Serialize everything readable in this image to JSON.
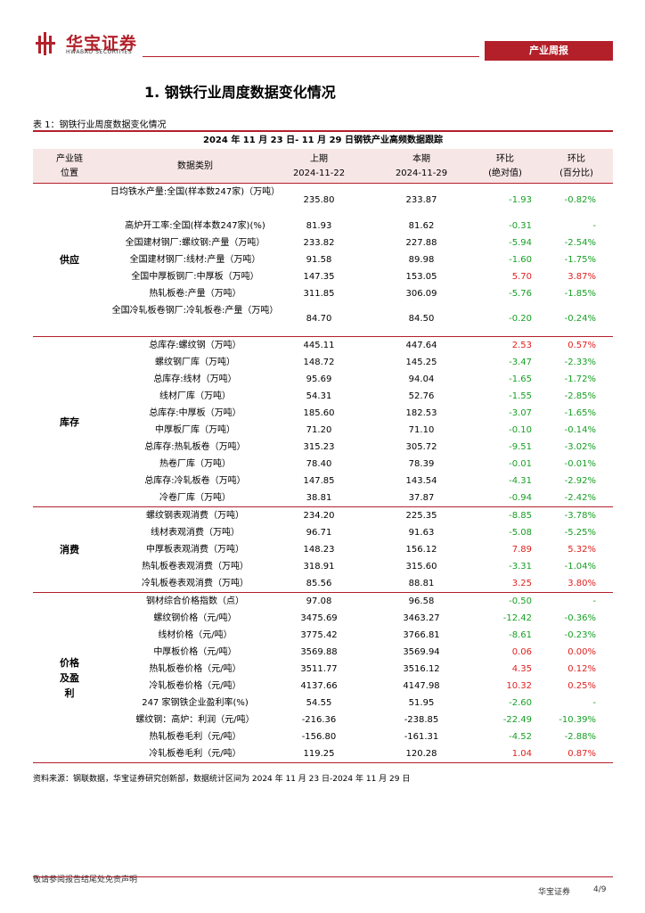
{
  "header": {
    "brand_cn": "华宝证券",
    "brand_en": "HWABAO SECURITIES",
    "report_type": "产业周报",
    "brand_color": "#b3202a"
  },
  "section_title": "1. 钢铁行业周度数据变化情况",
  "table_caption": "表 1：钢铁行业周度数据变化情况",
  "table": {
    "title": "2024 年 11 月 23 日- 11 月 29 日钢铁产业高频数据跟踪",
    "columns": {
      "chain_1": "产业链",
      "chain_2": "位置",
      "category": "数据类别",
      "prev_1": "上期",
      "prev_2": "2024-11-22",
      "curr_1": "本期",
      "curr_2": "2024-11-29",
      "abs_1": "环比",
      "abs_2": "(绝对值)",
      "pct_1": "环比",
      "pct_2": "(百分比)"
    },
    "colors": {
      "up": "#e0201e",
      "down": "#16a024",
      "neutral": "#000000"
    },
    "groups": [
      {
        "label": "供应",
        "rows": [
          {
            "name": "日均铁水产量:全国(样本数247家)（万吨）",
            "prev": "235.80",
            "curr": "233.87",
            "abs": "-1.93",
            "pct": "-0.82%",
            "dir": "down",
            "tall": true
          },
          {
            "name": "高炉开工率:全国(样本数247家)(%)",
            "prev": "81.93",
            "curr": "81.62",
            "abs": "-0.31",
            "pct": "-",
            "dir": "down"
          },
          {
            "name": "全国建材钢厂:螺纹钢:产量（万吨）",
            "prev": "233.82",
            "curr": "227.88",
            "abs": "-5.94",
            "pct": "-2.54%",
            "dir": "down"
          },
          {
            "name": "全国建材钢厂:线材:产量（万吨）",
            "prev": "91.58",
            "curr": "89.98",
            "abs": "-1.60",
            "pct": "-1.75%",
            "dir": "down"
          },
          {
            "name": "全国中厚板钢厂:中厚板（万吨）",
            "prev": "147.35",
            "curr": "153.05",
            "abs": "5.70",
            "pct": "3.87%",
            "dir": "up"
          },
          {
            "name": "热轧板卷:产量（万吨）",
            "prev": "311.85",
            "curr": "306.09",
            "abs": "-5.76",
            "pct": "-1.85%",
            "dir": "down"
          },
          {
            "name": "全国冷轧板卷钢厂:冷轧板卷:产量（万吨）",
            "prev": "84.70",
            "curr": "84.50",
            "abs": "-0.20",
            "pct": "-0.24%",
            "dir": "down",
            "tall": true
          }
        ]
      },
      {
        "label": "库存",
        "rows": [
          {
            "name": "总库存:螺纹钢（万吨）",
            "prev": "445.11",
            "curr": "447.64",
            "abs": "2.53",
            "pct": "0.57%",
            "dir": "up"
          },
          {
            "name": "螺纹钢厂库（万吨）",
            "prev": "148.72",
            "curr": "145.25",
            "abs": "-3.47",
            "pct": "-2.33%",
            "dir": "down"
          },
          {
            "name": "总库存:线材（万吨）",
            "prev": "95.69",
            "curr": "94.04",
            "abs": "-1.65",
            "pct": "-1.72%",
            "dir": "down"
          },
          {
            "name": "线材厂库（万吨）",
            "prev": "54.31",
            "curr": "52.76",
            "abs": "-1.55",
            "pct": "-2.85%",
            "dir": "down"
          },
          {
            "name": "总库存:中厚板（万吨）",
            "prev": "185.60",
            "curr": "182.53",
            "abs": "-3.07",
            "pct": "-1.65%",
            "dir": "down"
          },
          {
            "name": "中厚板厂库（万吨）",
            "prev": "71.20",
            "curr": "71.10",
            "abs": "-0.10",
            "pct": "-0.14%",
            "dir": "down"
          },
          {
            "name": "总库存:热轧板卷（万吨）",
            "prev": "315.23",
            "curr": "305.72",
            "abs": "-9.51",
            "pct": "-3.02%",
            "dir": "down"
          },
          {
            "name": "热卷厂库（万吨）",
            "prev": "78.40",
            "curr": "78.39",
            "abs": "-0.01",
            "pct": "-0.01%",
            "dir": "down"
          },
          {
            "name": "总库存:冷轧板卷（万吨）",
            "prev": "147.85",
            "curr": "143.54",
            "abs": "-4.31",
            "pct": "-2.92%",
            "dir": "down"
          },
          {
            "name": "冷卷厂库（万吨）",
            "prev": "38.81",
            "curr": "37.87",
            "abs": "-0.94",
            "pct": "-2.42%",
            "dir": "down"
          }
        ]
      },
      {
        "label": "消费",
        "rows": [
          {
            "name": "螺纹钢表观消费（万吨）",
            "prev": "234.20",
            "curr": "225.35",
            "abs": "-8.85",
            "pct": "-3.78%",
            "dir": "down"
          },
          {
            "name": "线材表观消费（万吨）",
            "prev": "96.71",
            "curr": "91.63",
            "abs": "-5.08",
            "pct": "-5.25%",
            "dir": "down"
          },
          {
            "name": "中厚板表观消费（万吨）",
            "prev": "148.23",
            "curr": "156.12",
            "abs": "7.89",
            "pct": "5.32%",
            "dir": "up"
          },
          {
            "name": "热轧板卷表观消费（万吨）",
            "prev": "318.91",
            "curr": "315.60",
            "abs": "-3.31",
            "pct": "-1.04%",
            "dir": "down"
          },
          {
            "name": "冷轧板卷表观消费（万吨）",
            "prev": "85.56",
            "curr": "88.81",
            "abs": "3.25",
            "pct": "3.80%",
            "dir": "up"
          }
        ]
      },
      {
        "label": "价格及盈利",
        "rows": [
          {
            "name": "钢材综合价格指数（点）",
            "prev": "97.08",
            "curr": "96.58",
            "abs": "-0.50",
            "pct": "-",
            "dir": "down"
          },
          {
            "name": "螺纹钢价格（元/吨）",
            "prev": "3475.69",
            "curr": "3463.27",
            "abs": "-12.42",
            "pct": "-0.36%",
            "dir": "down"
          },
          {
            "name": "线材价格（元/吨）",
            "prev": "3775.42",
            "curr": "3766.81",
            "abs": "-8.61",
            "pct": "-0.23%",
            "dir": "down"
          },
          {
            "name": "中厚板价格（元/吨）",
            "prev": "3569.88",
            "curr": "3569.94",
            "abs": "0.06",
            "pct": "0.00%",
            "dir": "up"
          },
          {
            "name": "热轧板卷价格（元/吨）",
            "prev": "3511.77",
            "curr": "3516.12",
            "abs": "4.35",
            "pct": "0.12%",
            "dir": "up"
          },
          {
            "name": "冷轧板卷价格（元/吨）",
            "prev": "4137.66",
            "curr": "4147.98",
            "abs": "10.32",
            "pct": "0.25%",
            "dir": "up"
          },
          {
            "name": "247 家钢铁企业盈利率(%)",
            "prev": "54.55",
            "curr": "51.95",
            "abs": "-2.60",
            "pct": "-",
            "dir": "down"
          },
          {
            "name": "螺纹钢：高炉：利润（元/吨）",
            "prev": "-216.36",
            "curr": "-238.85",
            "abs": "-22.49",
            "pct": "-10.39%",
            "dir": "down"
          },
          {
            "name": "热轧板卷毛利（元/吨）",
            "prev": "-156.80",
            "curr": "-161.31",
            "abs": "-4.52",
            "pct": "-2.88%",
            "dir": "down"
          },
          {
            "name": "冷轧板卷毛利（元/吨）",
            "prev": "119.25",
            "curr": "120.28",
            "abs": "1.04",
            "pct": "0.87%",
            "dir": "up"
          }
        ]
      }
    ]
  },
  "source": "资料来源：钢联数据，华宝证券研究创新部，数据统计区间为 2024 年 11 月 23 日-2024 年 11 月 29 日",
  "footer": {
    "disclaimer": "敬请参阅报告结尾处免责声明",
    "brand": "华宝证券",
    "page": "4/9"
  }
}
